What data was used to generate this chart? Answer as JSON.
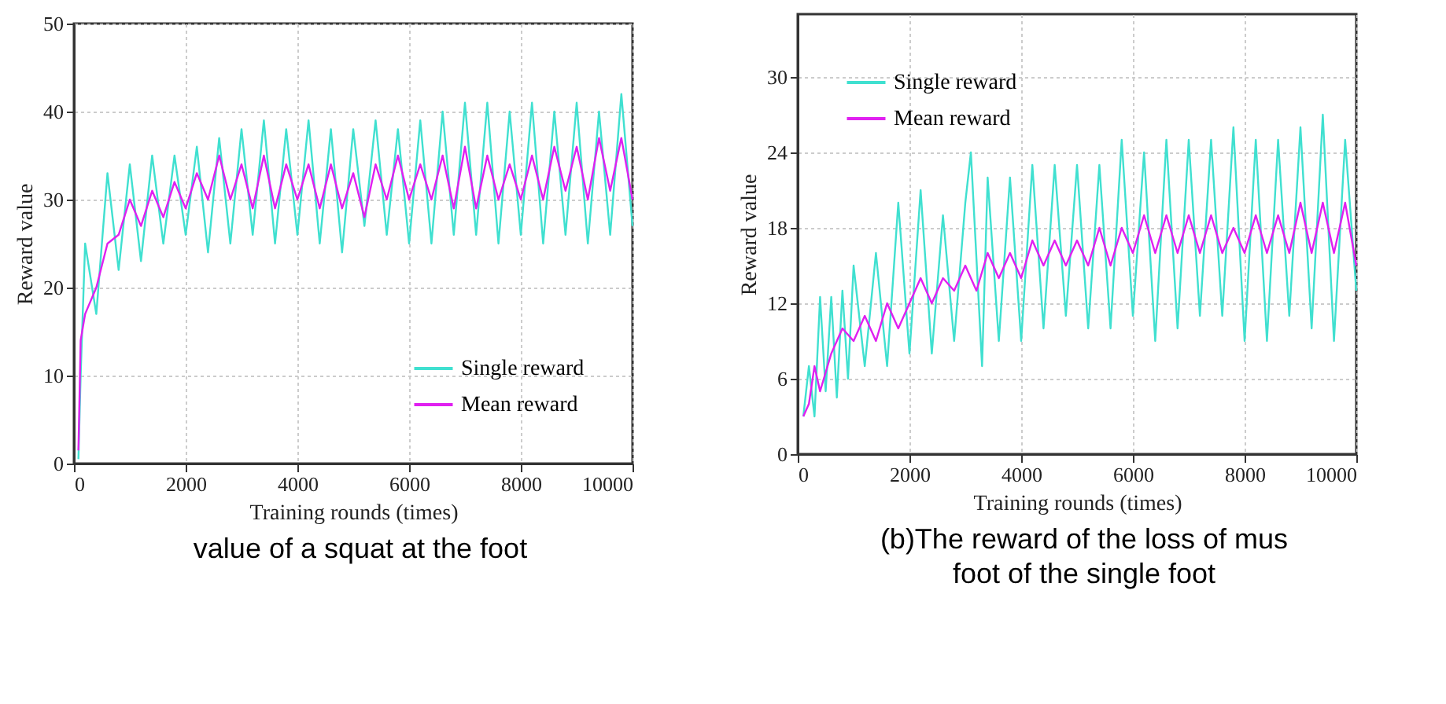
{
  "chart_data": [
    {
      "type": "line",
      "xlabel": "Training rounds (times)",
      "ylabel": "Reward value",
      "xlim": [
        0,
        10000
      ],
      "ylim": [
        0,
        50
      ],
      "xticks": [
        0,
        2000,
        4000,
        6000,
        8000,
        10000
      ],
      "yticks": [
        0,
        10,
        20,
        30,
        40,
        50
      ],
      "grid": true,
      "legend": "bottom right",
      "annotations": [
        "value of a squat at the foot"
      ],
      "series": [
        {
          "name": "Single reward",
          "color": "#40e0d0",
          "x": [
            80,
            120,
            200,
            400,
            600,
            800,
            1000,
            1200,
            1400,
            1600,
            1800,
            2000,
            2200,
            2400,
            2600,
            2800,
            3000,
            3200,
            3400,
            3600,
            3800,
            4000,
            4200,
            4400,
            4600,
            4800,
            5000,
            5200,
            5400,
            5600,
            5800,
            6000,
            6200,
            6400,
            6600,
            6800,
            7000,
            7200,
            7400,
            7600,
            7800,
            8000,
            8200,
            8400,
            8600,
            8800,
            9000,
            9200,
            9400,
            9600,
            9800,
            10000
          ],
          "values": [
            0.5,
            10,
            25,
            17,
            33,
            22,
            34,
            23,
            35,
            25,
            35,
            26,
            36,
            24,
            37,
            25,
            38,
            26,
            39,
            25,
            38,
            26,
            39,
            25,
            38,
            24,
            38,
            27,
            39,
            26,
            38,
            25,
            39,
            25,
            40,
            26,
            41,
            26,
            41,
            25,
            40,
            26,
            41,
            25,
            40,
            26,
            41,
            25,
            40,
            26,
            42,
            27
          ]
        },
        {
          "name": "Mean reward",
          "color": "#e020f0",
          "x": [
            80,
            120,
            200,
            400,
            600,
            800,
            1000,
            1200,
            1400,
            1600,
            1800,
            2000,
            2200,
            2400,
            2600,
            2800,
            3000,
            3200,
            3400,
            3600,
            3800,
            4000,
            4200,
            4400,
            4600,
            4800,
            5000,
            5200,
            5400,
            5600,
            5800,
            6000,
            6200,
            6400,
            6600,
            6800,
            7000,
            7200,
            7400,
            7600,
            7800,
            8000,
            8200,
            8400,
            8600,
            8800,
            9000,
            9200,
            9400,
            9600,
            9800,
            10000
          ],
          "values": [
            1.5,
            14,
            17,
            20,
            25,
            26,
            30,
            27,
            31,
            28,
            32,
            29,
            33,
            30,
            35,
            30,
            34,
            29,
            35,
            29,
            34,
            30,
            34,
            29,
            34,
            29,
            33,
            28,
            34,
            30,
            35,
            30,
            34,
            30,
            35,
            29,
            36,
            29,
            35,
            30,
            34,
            30,
            35,
            30,
            36,
            31,
            36,
            30,
            37,
            31,
            37,
            30
          ]
        }
      ]
    },
    {
      "type": "line",
      "xlabel": "Training rounds (times)",
      "ylabel": "Reward value",
      "xlim": [
        0,
        10000
      ],
      "ylim": [
        0,
        35
      ],
      "xticks": [
        0,
        2000,
        4000,
        6000,
        8000,
        10000
      ],
      "yticks": [
        0,
        6,
        12,
        18,
        24,
        30
      ],
      "grid": true,
      "legend": "top left",
      "annotations": [
        "(b)The reward of the loss of mus",
        "foot of the single foot"
      ],
      "series": [
        {
          "name": "Single reward",
          "color": "#40e0d0",
          "x": [
            100,
            200,
            300,
            400,
            500,
            600,
            700,
            800,
            900,
            1000,
            1200,
            1400,
            1600,
            1800,
            2000,
            2200,
            2400,
            2600,
            2800,
            3000,
            3100,
            3300,
            3400,
            3600,
            3800,
            4000,
            4200,
            4400,
            4600,
            4800,
            5000,
            5200,
            5400,
            5600,
            5800,
            6000,
            6200,
            6400,
            6600,
            6800,
            7000,
            7200,
            7400,
            7600,
            7800,
            8000,
            8200,
            8400,
            8600,
            8800,
            9000,
            9200,
            9400,
            9600,
            9800,
            10000
          ],
          "values": [
            3,
            7,
            3,
            12.5,
            5,
            12.5,
            4.5,
            13,
            6,
            15,
            7,
            16,
            7,
            20,
            8,
            21,
            8,
            19,
            9,
            20,
            24,
            7,
            22,
            9,
            22,
            9,
            23,
            10,
            23,
            11,
            23,
            10,
            23,
            10,
            25,
            11,
            24,
            9,
            25,
            10,
            25,
            11,
            25,
            11,
            26,
            9,
            25,
            9,
            25,
            11,
            26,
            10,
            27,
            9,
            25,
            13
          ]
        },
        {
          "name": "Mean reward",
          "color": "#e020f0",
          "x": [
            100,
            200,
            300,
            400,
            600,
            800,
            1000,
            1200,
            1400,
            1600,
            1800,
            2000,
            2200,
            2400,
            2600,
            2800,
            3000,
            3200,
            3400,
            3600,
            3800,
            4000,
            4200,
            4400,
            4600,
            4800,
            5000,
            5200,
            5400,
            5600,
            5800,
            6000,
            6200,
            6400,
            6600,
            6800,
            7000,
            7200,
            7400,
            7600,
            7800,
            8000,
            8200,
            8400,
            8600,
            8800,
            9000,
            9200,
            9400,
            9600,
            9800,
            10000
          ],
          "values": [
            3,
            4,
            7,
            5,
            8,
            10,
            9,
            11,
            9,
            12,
            10,
            12,
            14,
            12,
            14,
            13,
            15,
            13,
            16,
            14,
            16,
            14,
            17,
            15,
            17,
            15,
            17,
            15,
            18,
            15,
            18,
            16,
            19,
            16,
            19,
            16,
            19,
            16,
            19,
            16,
            18,
            16,
            19,
            16,
            19,
            16,
            20,
            16,
            20,
            16,
            20,
            15
          ]
        }
      ]
    }
  ]
}
